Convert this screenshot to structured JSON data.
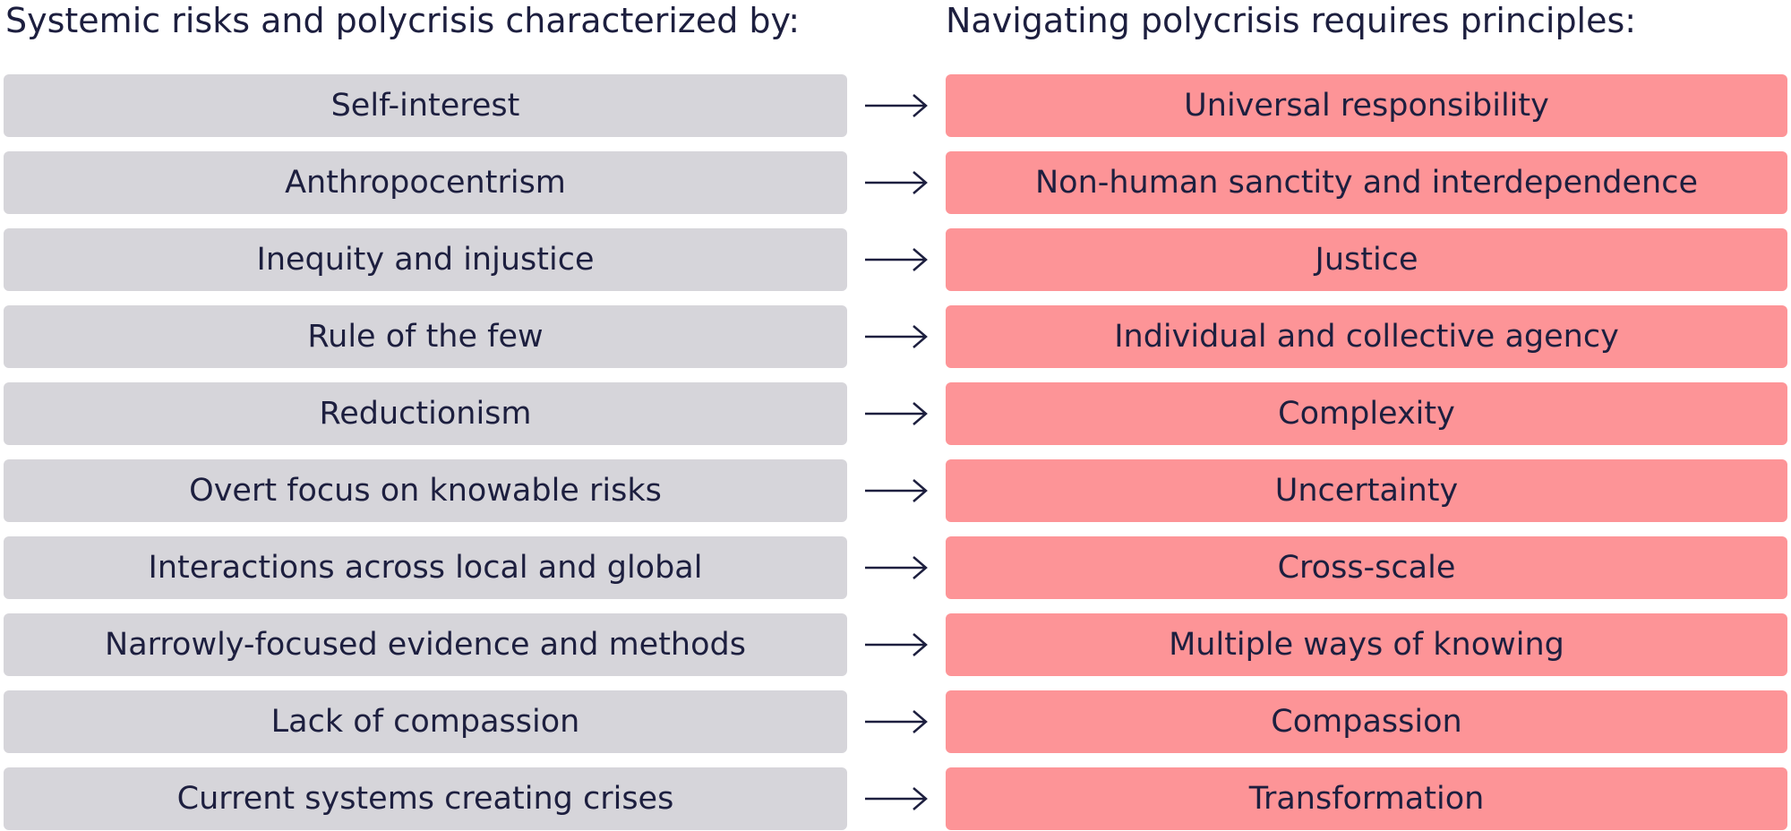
{
  "left_heading": "Systemic risks and polycrisis characterized by:",
  "right_heading": "Navigating polycrisis requires principles:",
  "rows": [
    {
      "left": "Self-interest",
      "right": "Universal responsibility"
    },
    {
      "left": "Anthropocentrism",
      "right": "Non-human sanctity and interdependence"
    },
    {
      "left": "Inequity and injustice",
      "right": "Justice"
    },
    {
      "left": "Rule of the few",
      "right": "Individual and collective agency"
    },
    {
      "left": "Reductionism",
      "right": "Complexity"
    },
    {
      "left": "Overt focus on knowable risks",
      "right": "Uncertainty"
    },
    {
      "left": "Interactions across local and global",
      "right": "Cross-scale"
    },
    {
      "left": "Narrowly-focused evidence and methods",
      "right": "Multiple ways of knowing"
    },
    {
      "left": "Lack of compassion",
      "right": "Compassion"
    },
    {
      "left": "Current systems creating crises",
      "right": "Transformation"
    }
  ]
}
